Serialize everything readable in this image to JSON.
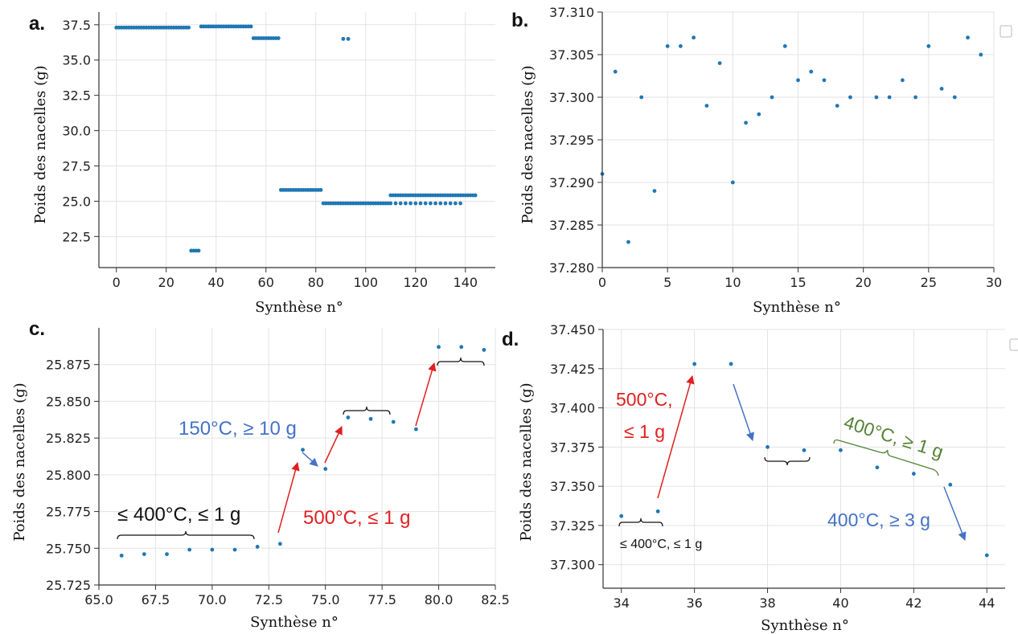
{
  "colors": {
    "point": "#1f77b4",
    "red": "#e02020",
    "blue": "#4472c4",
    "green": "#548235",
    "black": "#111111",
    "grid": "#e3e3e3"
  },
  "chart_data": [
    {
      "id": "a",
      "type": "scatter",
      "panel_label": "a.",
      "xlabel": "Synthèse n°",
      "ylabel": "Poids des nacelles (g)",
      "xlim": [
        -7,
        152
      ],
      "ylim": [
        20.3,
        38.4
      ],
      "xticks": [
        0,
        20,
        40,
        60,
        80,
        100,
        120,
        140
      ],
      "xtick_labels": [
        "0",
        "20",
        "40",
        "60",
        "80",
        "100",
        "120",
        "140"
      ],
      "yticks": [
        22.5,
        25.0,
        27.5,
        30.0,
        32.5,
        35.0,
        37.5
      ],
      "ytick_labels": [
        "22.5",
        "25.0",
        "27.5",
        "30.0",
        "32.5",
        "35.0",
        "37.5"
      ],
      "segments": [
        {
          "x_from": 0,
          "x_to": 29,
          "y": 37.3
        },
        {
          "x_from": 30,
          "x_to": 33,
          "y": 21.5
        },
        {
          "x_from": 34,
          "x_to": 54,
          "y": 37.38
        },
        {
          "x_from": 55,
          "x_to": 65,
          "y": 36.55
        },
        {
          "x_from": 66,
          "x_to": 82,
          "y": 25.8
        },
        {
          "x_from": 83,
          "x_to": 109,
          "y": 24.85
        },
        {
          "x_from": 110,
          "x_to": 144,
          "y": 25.42
        },
        {
          "x_from": 110,
          "x_to": 138,
          "y": 24.85,
          "step": 2
        }
      ],
      "points": [
        {
          "x": 91,
          "y": 36.5
        },
        {
          "x": 93,
          "y": 36.5
        }
      ]
    },
    {
      "id": "b",
      "type": "scatter",
      "panel_label": "b.",
      "xlabel": "Synthèse n°",
      "ylabel": "Poids des nacelles (g)",
      "xlim": [
        0,
        30
      ],
      "ylim": [
        37.28,
        37.31
      ],
      "xticks": [
        0,
        5,
        10,
        15,
        20,
        25,
        30
      ],
      "xtick_labels": [
        "0",
        "5",
        "10",
        "15",
        "20",
        "25",
        "30"
      ],
      "yticks": [
        37.28,
        37.285,
        37.29,
        37.295,
        37.3,
        37.305,
        37.31
      ],
      "ytick_labels": [
        "37.280",
        "37.285",
        "37.290",
        "37.295",
        "37.300",
        "37.305",
        "37.310"
      ],
      "x": [
        0,
        1,
        2,
        3,
        4,
        5,
        6,
        7,
        8,
        9,
        10,
        11,
        12,
        13,
        14,
        15,
        16,
        17,
        18,
        19,
        21,
        22,
        23,
        24,
        25,
        26,
        27,
        28,
        29
      ],
      "y": [
        37.291,
        37.303,
        37.283,
        37.3,
        37.289,
        37.306,
        37.306,
        37.307,
        37.299,
        37.304,
        37.29,
        37.297,
        37.298,
        37.3,
        37.306,
        37.302,
        37.303,
        37.302,
        37.299,
        37.3,
        37.3,
        37.3,
        37.302,
        37.3,
        37.306,
        37.301,
        37.3,
        37.307,
        37.305
      ]
    },
    {
      "id": "c",
      "type": "scatter",
      "panel_label": "c.",
      "xlabel": "Synthèse n°",
      "ylabel": "Poids des nacelles (g)",
      "xlim": [
        65,
        82.5
      ],
      "ylim": [
        25.725,
        25.9
      ],
      "xticks": [
        65,
        67.5,
        70,
        72.5,
        75,
        77.5,
        80,
        82.5
      ],
      "xtick_labels": [
        "65.0",
        "67.5",
        "70.0",
        "72.5",
        "75.0",
        "77.5",
        "80.0",
        "82.5"
      ],
      "yticks": [
        25.725,
        25.75,
        25.775,
        25.8,
        25.825,
        25.85,
        25.875
      ],
      "ytick_labels": [
        "25.725",
        "25.750",
        "25.775",
        "25.800",
        "25.825",
        "25.850",
        "25.875"
      ],
      "x": [
        66,
        67,
        68,
        69,
        70,
        71,
        72,
        73,
        74,
        75,
        76,
        77,
        78,
        79,
        80,
        81,
        82
      ],
      "y": [
        25.745,
        25.746,
        25.746,
        25.749,
        25.749,
        25.749,
        25.751,
        25.753,
        25.817,
        25.804,
        25.839,
        25.838,
        25.836,
        25.831,
        25.887,
        25.887,
        25.885
      ],
      "annotations": [
        {
          "text": "≤ 400°C, ≤ 1 g",
          "color": "black"
        },
        {
          "text": "500°C, ≤ 1 g",
          "color": "red"
        },
        {
          "text": "150°C, ≥ 10 g",
          "color": "blue"
        }
      ]
    },
    {
      "id": "d",
      "type": "scatter",
      "panel_label": "d.",
      "xlabel": "Synthèse n°",
      "ylabel": "Poids des nacelles (g)",
      "xlim": [
        33.5,
        44.5
      ],
      "ylim": [
        37.285,
        37.45
      ],
      "xticks": [
        34,
        36,
        38,
        40,
        42,
        44
      ],
      "xtick_labels": [
        "34",
        "36",
        "38",
        "40",
        "42",
        "44"
      ],
      "yticks": [
        37.3,
        37.325,
        37.35,
        37.375,
        37.4,
        37.425,
        37.45
      ],
      "ytick_labels": [
        "37.300",
        "37.325",
        "37.350",
        "37.375",
        "37.400",
        "37.425",
        "37.450"
      ],
      "x": [
        34,
        35,
        36,
        37,
        38,
        39,
        40,
        41,
        42,
        43,
        44
      ],
      "y": [
        37.331,
        37.334,
        37.428,
        37.428,
        37.375,
        37.373,
        37.373,
        37.362,
        37.358,
        37.351,
        37.306
      ],
      "annotations": [
        {
          "text": "500°C,",
          "color": "red"
        },
        {
          "text": "≤ 1 g",
          "color": "red"
        },
        {
          "text": "≤ 400°C, ≤ 1 g",
          "color": "black"
        },
        {
          "text": "400°C, ≥ 1 g",
          "color": "green"
        },
        {
          "text": "400°C, ≥ 3 g",
          "color": "blue"
        }
      ]
    }
  ]
}
